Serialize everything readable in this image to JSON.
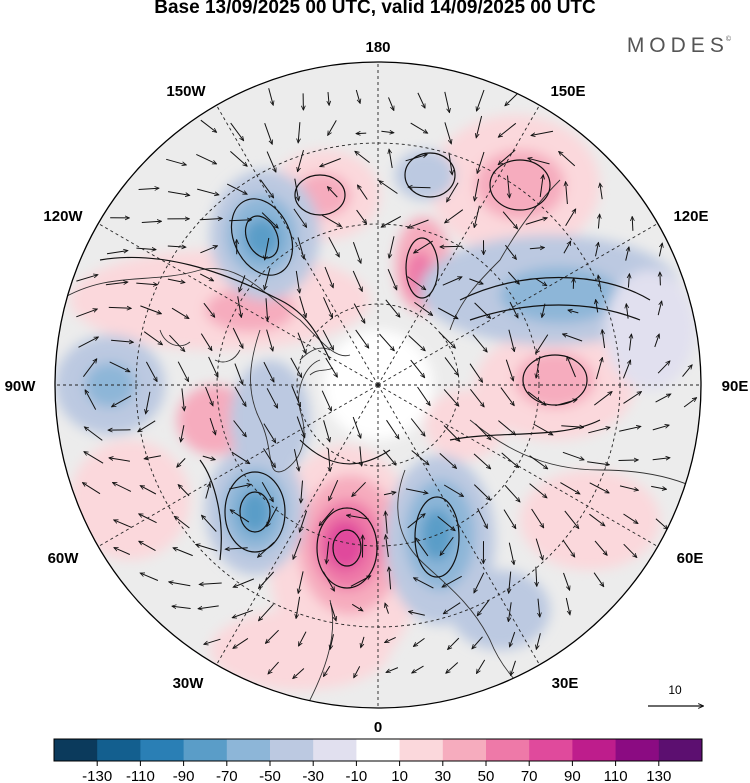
{
  "title": "Base 13/09/2025 00 UTC, valid 14/09/2025 00 UTC",
  "brand": "MODES",
  "brand_mark": "©",
  "longitude_labels": {
    "lon_180": "180",
    "lon_150e": "150E",
    "lon_120e": "120E",
    "lon_90e": "90E",
    "lon_60e": "60E",
    "lon_30e": "30E",
    "lon_0": "0",
    "lon_30w": "30W",
    "lon_60w": "60W",
    "lon_90w": "90W",
    "lon_120w": "120W",
    "lon_150w": "150W"
  },
  "vector_reference": {
    "value": "10"
  },
  "colorbar": {
    "labels": [
      "-130",
      "-110",
      "-90",
      "-70",
      "-50",
      "-30",
      "-10",
      "10",
      "30",
      "50",
      "70",
      "90",
      "110",
      "130"
    ],
    "colors": [
      "#0b3a5c",
      "#135f8f",
      "#2a7fb5",
      "#5a9dc8",
      "#8db6d8",
      "#bcc9e1",
      "#e1e0ef",
      "#ffffff",
      "#fbd8dc",
      "#f6acbe",
      "#ee79a8",
      "#e04a9c",
      "#be1d8c",
      "#8b0b82",
      "#5c0f70"
    ]
  },
  "colors": {
    "coast": "#333333",
    "graticule": "#222222",
    "neutral": "#ececec"
  }
}
